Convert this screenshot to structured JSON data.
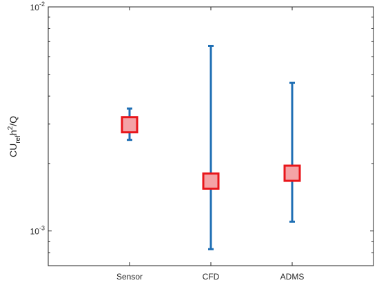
{
  "chart_data": {
    "type": "errorbar",
    "title": "",
    "xlabel": "",
    "ylabel": {
      "base": "CU",
      "sub": "ref",
      "mid": "h",
      "sup": "2",
      "tail": "/Q"
    },
    "yscale": "log",
    "ylim": [
      0.0007,
      0.01
    ],
    "y_ticks": [
      {
        "value": 0.001,
        "base": "10",
        "exp": "-3"
      },
      {
        "value": 0.01,
        "base": "10",
        "exp": "-2"
      }
    ],
    "categories": [
      "Sensor",
      "CFD",
      "ADMS"
    ],
    "xlim": [
      0,
      4
    ],
    "points": [
      {
        "x": "Sensor",
        "y": 0.00298,
        "lower": 0.00255,
        "upper": 0.00352
      },
      {
        "x": "CFD",
        "y": 0.00167,
        "lower": 0.00083,
        "upper": 0.0067
      },
      {
        "x": "ADMS",
        "y": 0.00181,
        "lower": 0.0011,
        "upper": 0.00458
      }
    ],
    "colors": {
      "errorbar": "#1f6fb4",
      "marker_edge": "#e8161b",
      "marker_fill": "#f4a3a6",
      "axis": "#262626"
    },
    "grid": false,
    "legend": "none"
  }
}
